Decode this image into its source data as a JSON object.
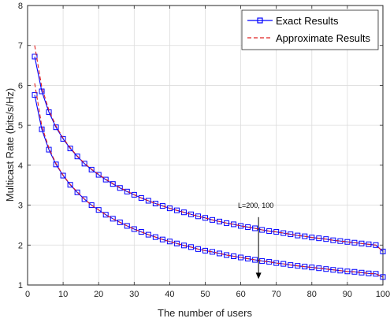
{
  "chart_data": {
    "type": "line",
    "title": "",
    "xlabel": "The number of users",
    "ylabel": "Multicast Rate (bits/s/Hz)",
    "xlim": [
      0,
      100
    ],
    "ylim": [
      1,
      8
    ],
    "xticks": [
      0,
      10,
      20,
      30,
      40,
      50,
      60,
      70,
      80,
      90,
      100
    ],
    "yticks": [
      1,
      2,
      3,
      4,
      5,
      6,
      7,
      8
    ],
    "grid": true,
    "legend": {
      "position": "top-right",
      "entries": [
        "Exact Results",
        "Approximate Results"
      ]
    },
    "annotation": {
      "text": "L=200, 100",
      "arrow_from": [
        65,
        2.7
      ],
      "arrow_to": [
        65,
        1.15
      ]
    },
    "x": [
      2,
      4,
      6,
      8,
      10,
      12,
      14,
      16,
      18,
      20,
      22,
      24,
      26,
      28,
      30,
      32,
      34,
      36,
      38,
      40,
      42,
      44,
      46,
      48,
      50,
      52,
      54,
      56,
      58,
      60,
      62,
      64,
      66,
      68,
      70,
      72,
      74,
      76,
      78,
      80,
      82,
      84,
      86,
      88,
      90,
      92,
      94,
      96,
      98,
      100
    ],
    "series": [
      {
        "name": "Exact Results",
        "group": "L=200",
        "color": "#0000ff",
        "marker": "square",
        "values": [
          6.72,
          5.85,
          5.33,
          4.95,
          4.66,
          4.42,
          4.22,
          4.04,
          3.89,
          3.76,
          3.64,
          3.53,
          3.43,
          3.34,
          3.26,
          3.18,
          3.11,
          3.04,
          2.98,
          2.92,
          2.87,
          2.82,
          2.77,
          2.72,
          2.68,
          2.63,
          2.59,
          2.55,
          2.52,
          2.48,
          2.45,
          2.42,
          2.38,
          2.35,
          2.33,
          2.3,
          2.27,
          2.24,
          2.22,
          2.19,
          2.17,
          2.15,
          2.12,
          2.1,
          2.08,
          2.06,
          2.04,
          2.02,
          2.0,
          1.84
        ]
      },
      {
        "name": "Approximate Results",
        "group": "L=200",
        "color": "#e02020",
        "marker": "none",
        "values": [
          7.0,
          5.95,
          5.38,
          4.98,
          4.68,
          4.44,
          4.23,
          4.05,
          3.9,
          3.77,
          3.65,
          3.54,
          3.44,
          3.35,
          3.26,
          3.18,
          3.11,
          3.04,
          2.98,
          2.92,
          2.87,
          2.82,
          2.77,
          2.72,
          2.68,
          2.63,
          2.59,
          2.55,
          2.52,
          2.48,
          2.45,
          2.42,
          2.38,
          2.35,
          2.33,
          2.3,
          2.27,
          2.24,
          2.22,
          2.19,
          2.17,
          2.15,
          2.12,
          2.1,
          2.08,
          2.06,
          2.04,
          2.02,
          2.0,
          1.84
        ]
      },
      {
        "name": "Exact Results",
        "group": "L=100",
        "color": "#0000ff",
        "marker": "square",
        "values": [
          5.76,
          4.9,
          4.39,
          4.02,
          3.74,
          3.51,
          3.32,
          3.15,
          3.0,
          2.88,
          2.76,
          2.66,
          2.57,
          2.48,
          2.4,
          2.33,
          2.26,
          2.2,
          2.14,
          2.09,
          2.04,
          1.99,
          1.95,
          1.9,
          1.86,
          1.83,
          1.79,
          1.75,
          1.72,
          1.69,
          1.66,
          1.63,
          1.6,
          1.58,
          1.55,
          1.53,
          1.5,
          1.48,
          1.46,
          1.44,
          1.42,
          1.4,
          1.38,
          1.36,
          1.34,
          1.33,
          1.31,
          1.29,
          1.28,
          1.2
        ]
      },
      {
        "name": "Approximate Results",
        "group": "L=100",
        "color": "#e02020",
        "marker": "none",
        "values": [
          6.05,
          4.98,
          4.43,
          4.04,
          3.75,
          3.52,
          3.33,
          3.15,
          3.0,
          2.88,
          2.76,
          2.66,
          2.57,
          2.48,
          2.4,
          2.33,
          2.26,
          2.2,
          2.14,
          2.09,
          2.04,
          1.99,
          1.95,
          1.9,
          1.86,
          1.83,
          1.79,
          1.75,
          1.72,
          1.69,
          1.66,
          1.63,
          1.6,
          1.58,
          1.55,
          1.53,
          1.5,
          1.48,
          1.46,
          1.44,
          1.42,
          1.4,
          1.38,
          1.36,
          1.34,
          1.33,
          1.31,
          1.29,
          1.28,
          1.2
        ]
      }
    ]
  }
}
